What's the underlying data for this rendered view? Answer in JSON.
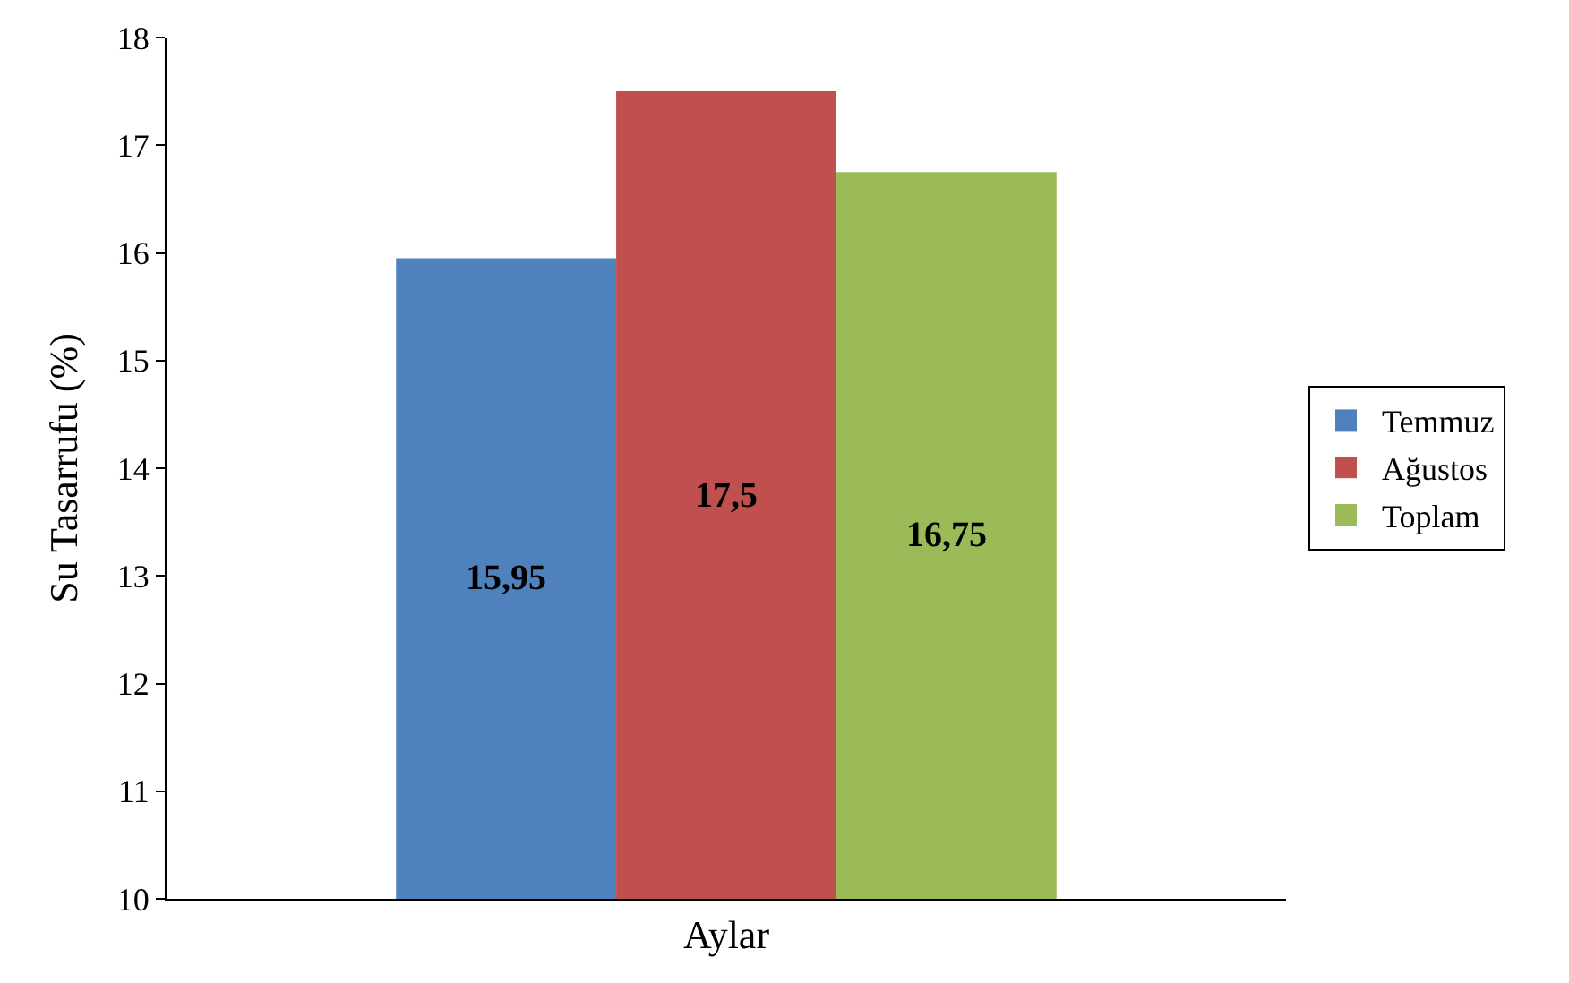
{
  "chart_data": {
    "type": "bar",
    "xlabel": "Aylar",
    "ylabel": "Su Tasarrufu (%)",
    "categories": [
      null
    ],
    "series": [
      {
        "name": "Temmuz",
        "color": "#4f81bd",
        "values": [
          15.95
        ],
        "value_labels": [
          "15,95"
        ]
      },
      {
        "name": "Ağustos",
        "color": "#c0504d",
        "values": [
          17.5
        ],
        "value_labels": [
          "17,5"
        ]
      },
      {
        "name": "Toplam",
        "color": "#9bbb59",
        "values": [
          16.75
        ],
        "value_labels": [
          "16,75"
        ]
      }
    ],
    "ylim": [
      10,
      18
    ],
    "yticks": [
      10,
      11,
      12,
      13,
      14,
      15,
      16,
      17,
      18
    ],
    "grid": false,
    "legend": "right"
  }
}
